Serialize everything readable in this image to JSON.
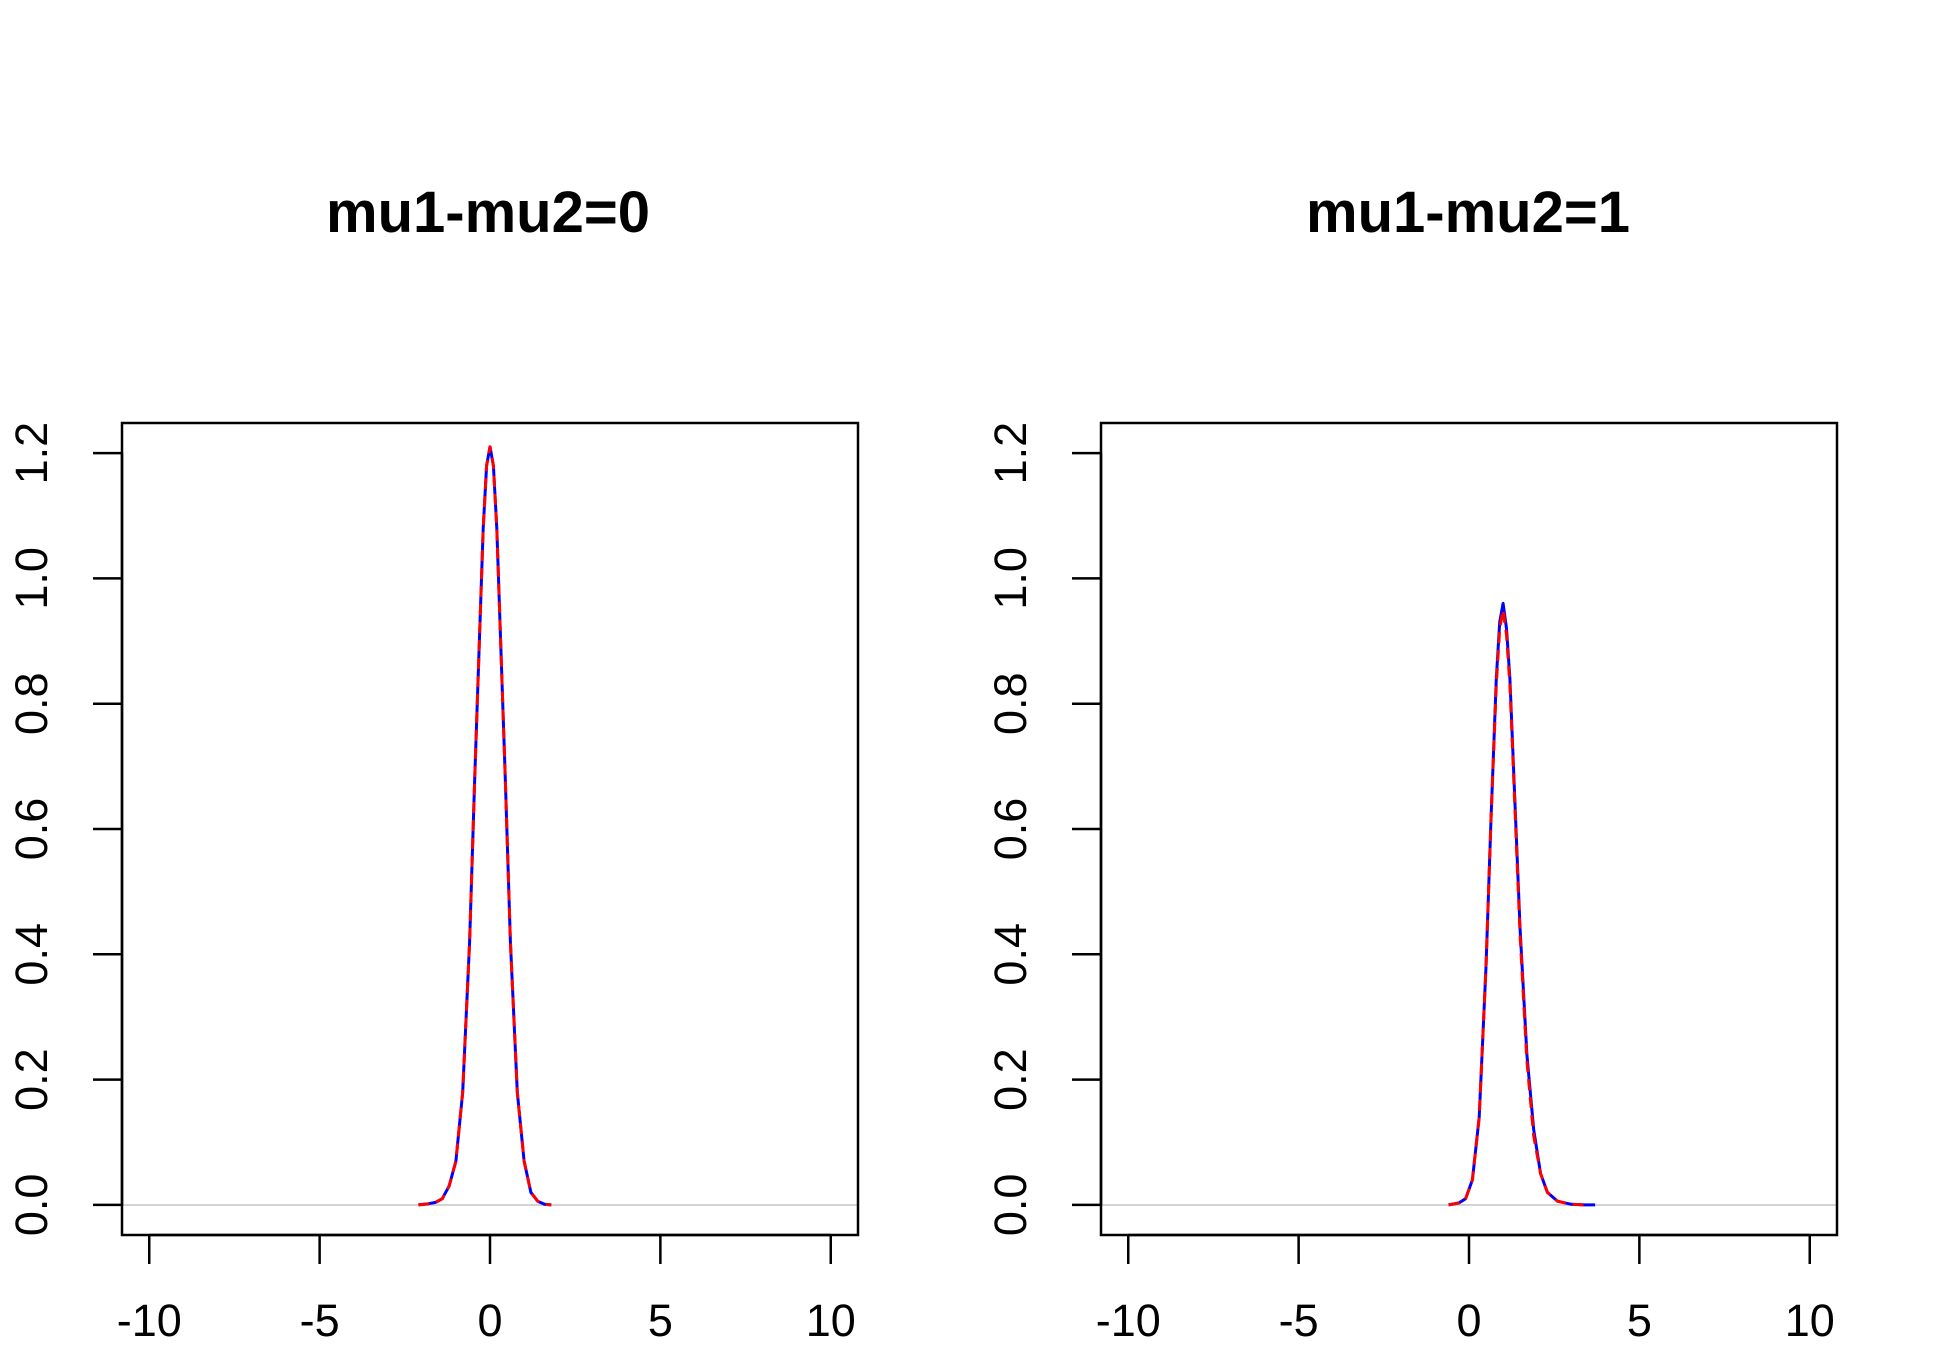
{
  "chart_data": [
    {
      "type": "line",
      "title": "mu1-mu2=0",
      "xlabel": "",
      "ylabel": "",
      "xlim": [
        -10.8,
        10.8
      ],
      "ylim": [
        -0.048,
        1.248
      ],
      "xticks": [
        -10,
        -5,
        0,
        5,
        10
      ],
      "xtick_labels": [
        "-10",
        "-5",
        "0",
        "5",
        "10"
      ],
      "yticks": [
        0.0,
        0.2,
        0.4,
        0.6,
        0.8,
        1.0,
        1.2
      ],
      "ytick_labels": [
        "0.0",
        "0.2",
        "0.4",
        "0.6",
        "0.8",
        "1.0",
        "1.2"
      ],
      "baseline_color": "#d3d3d3",
      "series": [
        {
          "color": "#0000ff",
          "dash": "solid",
          "x": [
            -2.1,
            -1.8,
            -1.6,
            -1.4,
            -1.2,
            -1.0,
            -0.8,
            -0.6,
            -0.45,
            -0.3,
            -0.2,
            -0.1,
            0.0,
            0.1,
            0.2,
            0.3,
            0.45,
            0.6,
            0.8,
            1.0,
            1.2,
            1.4,
            1.6,
            1.8
          ],
          "y": [
            0.0,
            0.002,
            0.004,
            0.01,
            0.03,
            0.07,
            0.18,
            0.42,
            0.68,
            0.92,
            1.08,
            1.18,
            1.21,
            1.18,
            1.08,
            0.92,
            0.68,
            0.42,
            0.18,
            0.07,
            0.02,
            0.006,
            0.001,
            0.0
          ]
        },
        {
          "color": "#ff0000",
          "dash": "dashed",
          "x": [
            -2.1,
            -1.8,
            -1.6,
            -1.4,
            -1.2,
            -1.0,
            -0.8,
            -0.6,
            -0.45,
            -0.3,
            -0.2,
            -0.1,
            0.0,
            0.1,
            0.2,
            0.3,
            0.45,
            0.6,
            0.8,
            1.0,
            1.2,
            1.4,
            1.6,
            1.8
          ],
          "y": [
            0.0,
            0.002,
            0.004,
            0.01,
            0.03,
            0.07,
            0.18,
            0.42,
            0.68,
            0.92,
            1.08,
            1.18,
            1.21,
            1.18,
            1.08,
            0.92,
            0.68,
            0.42,
            0.18,
            0.07,
            0.02,
            0.006,
            0.001,
            0.0
          ]
        }
      ]
    },
    {
      "type": "line",
      "title": "mu1-mu2=1",
      "xlabel": "",
      "ylabel": "",
      "xlim": [
        -10.8,
        10.8
      ],
      "ylim": [
        -0.048,
        1.248
      ],
      "xticks": [
        -10,
        -5,
        0,
        5,
        10
      ],
      "xtick_labels": [
        "-10",
        "-5",
        "0",
        "5",
        "10"
      ],
      "yticks": [
        0.0,
        0.2,
        0.4,
        0.6,
        0.8,
        1.0,
        1.2
      ],
      "ytick_labels": [
        "0.0",
        "0.2",
        "0.4",
        "0.6",
        "0.8",
        "1.0",
        "1.2"
      ],
      "baseline_color": "#d3d3d3",
      "series": [
        {
          "color": "#0000ff",
          "dash": "solid",
          "x": [
            -0.6,
            -0.3,
            -0.1,
            0.1,
            0.3,
            0.5,
            0.65,
            0.8,
            0.9,
            1.0,
            1.1,
            1.2,
            1.35,
            1.5,
            1.7,
            1.9,
            2.1,
            2.3,
            2.6,
            3.0,
            3.4,
            3.7
          ],
          "y": [
            0.0,
            0.003,
            0.01,
            0.04,
            0.14,
            0.38,
            0.62,
            0.84,
            0.93,
            0.96,
            0.92,
            0.84,
            0.64,
            0.44,
            0.24,
            0.12,
            0.05,
            0.02,
            0.006,
            0.001,
            0.0,
            0.0
          ]
        },
        {
          "color": "#ff0000",
          "dash": "dashed",
          "x": [
            -0.6,
            -0.3,
            -0.1,
            0.1,
            0.3,
            0.5,
            0.65,
            0.8,
            0.9,
            1.0,
            1.1,
            1.2,
            1.35,
            1.5,
            1.7,
            1.9,
            2.1,
            2.3,
            2.6,
            3.0,
            3.4
          ],
          "y": [
            0.0,
            0.003,
            0.01,
            0.04,
            0.14,
            0.38,
            0.62,
            0.83,
            0.92,
            0.95,
            0.91,
            0.83,
            0.63,
            0.43,
            0.23,
            0.11,
            0.05,
            0.02,
            0.006,
            0.001,
            0.0
          ]
        }
      ]
    }
  ]
}
